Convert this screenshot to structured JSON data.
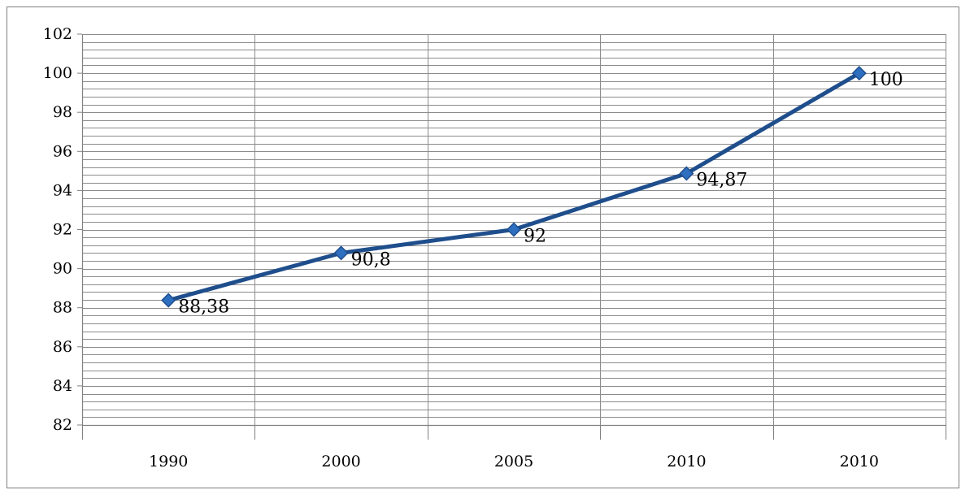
{
  "chart_data": {
    "type": "line",
    "categories": [
      "1990",
      "2000",
      "2005",
      "2010",
      "2010"
    ],
    "series": [
      {
        "values": [
          88.38,
          90.8,
          92,
          94.87,
          100
        ]
      }
    ],
    "data_labels": [
      "88,38",
      "90,8",
      "92",
      "94,87",
      "100"
    ],
    "ylim": [
      82,
      102
    ],
    "yticks": [
      82,
      84,
      86,
      88,
      90,
      92,
      94,
      96,
      98,
      100,
      102
    ],
    "ytick_labels": [
      "82",
      "84",
      "86",
      "88",
      "90",
      "92",
      "94",
      "96",
      "98",
      "100",
      "102"
    ],
    "grid": true,
    "minor_grid_step": 0.4,
    "line_color": "#1f4e8c",
    "marker_color": "#2e6fc0",
    "marker": "diamond",
    "title": "",
    "xlabel": "",
    "ylabel": ""
  }
}
